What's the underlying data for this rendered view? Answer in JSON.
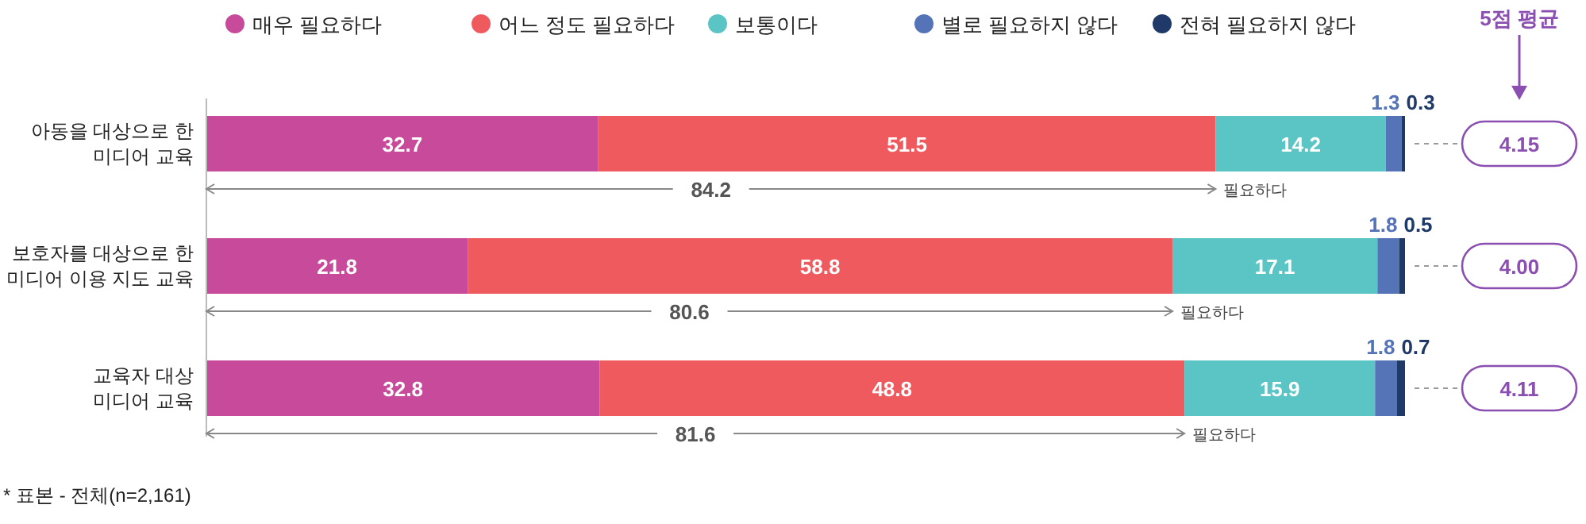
{
  "chart_data": {
    "type": "bar",
    "orientation": "horizontal",
    "stacked": true,
    "data_labels": true,
    "legend": "top",
    "categories": [
      "아동을 대상으로 한\n미디어 교육",
      "보호자를 대상으로 한\n미디어 이용 지도 교육",
      "교육자 대상\n미디어 교육"
    ],
    "series": [
      {
        "name": "매우 필요하다",
        "color": "#c74a9b",
        "values": [
          32.7,
          21.8,
          32.8
        ]
      },
      {
        "name": "어느 정도 필요하다",
        "color": "#ef5a5f",
        "values": [
          51.5,
          58.8,
          48.8
        ]
      },
      {
        "name": "보통이다",
        "color": "#5bc4c4",
        "values": [
          14.2,
          17.1,
          15.9
        ]
      },
      {
        "name": "별로 필요하지 않다",
        "color": "#5574b8",
        "values": [
          1.3,
          1.8,
          1.8
        ]
      },
      {
        "name": "전혀 필요하지 않다",
        "color": "#1f3a68",
        "values": [
          0.3,
          0.5,
          0.7
        ]
      }
    ],
    "annotations": [
      "5점 평균",
      "84.2",
      "필요하다",
      "4.15",
      "80.6",
      "필요하다",
      "4.00",
      "81.6",
      "필요하다",
      "4.11",
      "* 표본 - 전체(n=2,161)"
    ]
  }
}
